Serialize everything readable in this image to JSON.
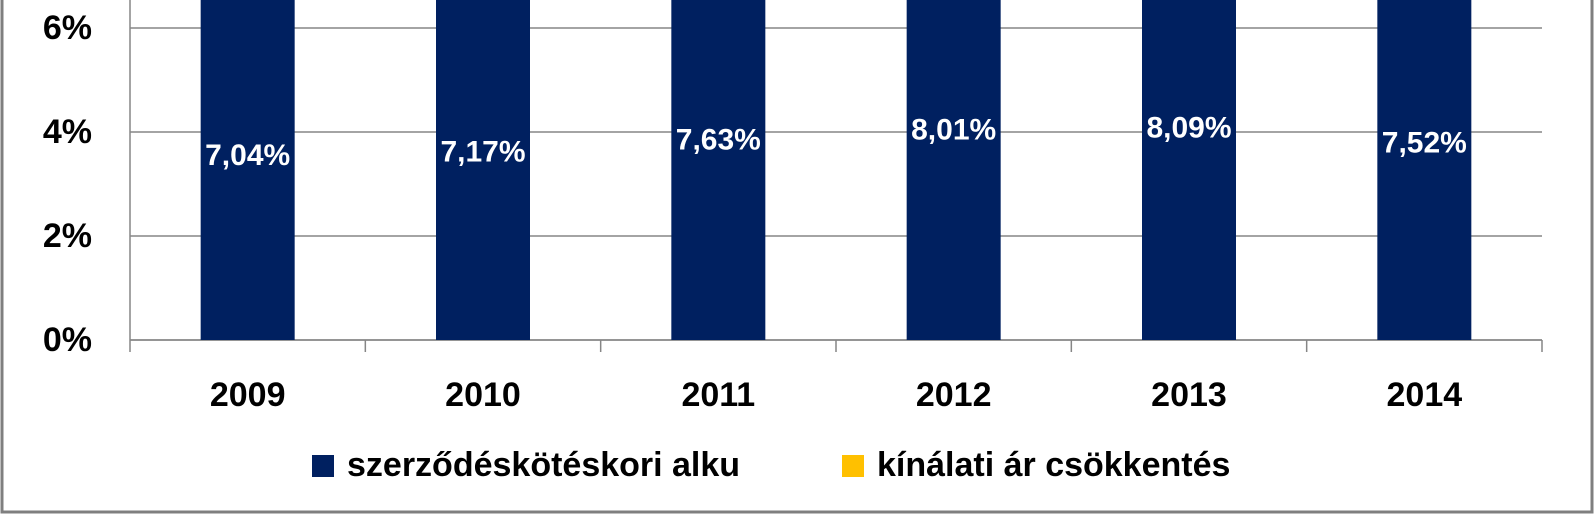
{
  "chart_data": {
    "type": "stacked-bar",
    "categories": [
      "2009",
      "2010",
      "2011",
      "2012",
      "2013",
      "2014"
    ],
    "series": [
      {
        "name": "szerződéskötéskori alku",
        "color": "#002060",
        "values": [
          7.04,
          7.17,
          7.63,
          8.01,
          8.09,
          7.52
        ],
        "value_labels": [
          "7,04%",
          "7,17%",
          "7,63%",
          "8,01%",
          "8,09%",
          "7,52%"
        ]
      },
      {
        "name": "kínálati ár csökkentés",
        "color": "#ffc000",
        "values": [
          null,
          null,
          null,
          null,
          null,
          null
        ]
      }
    ],
    "ylim": [
      0,
      6.5
    ],
    "yticks": [
      {
        "value": 0,
        "label": "0%"
      },
      {
        "value": 2,
        "label": "2%"
      },
      {
        "value": 4,
        "label": "4%"
      },
      {
        "value": 6,
        "label": "6%"
      }
    ],
    "grid": true
  }
}
